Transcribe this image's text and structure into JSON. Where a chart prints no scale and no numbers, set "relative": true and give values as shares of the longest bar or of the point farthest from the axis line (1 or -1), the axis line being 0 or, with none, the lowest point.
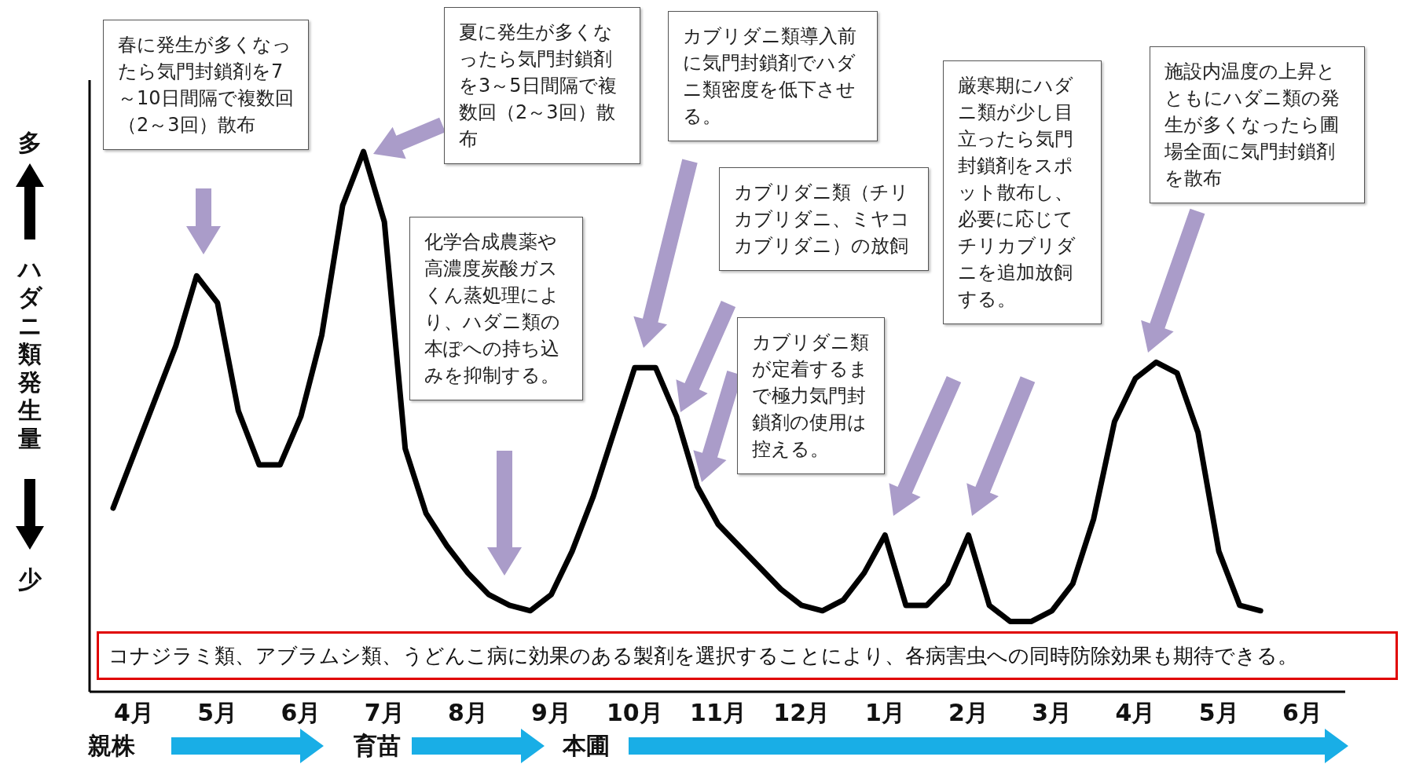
{
  "chart_data": {
    "type": "line",
    "ylabel": "ハダニ類発生量",
    "relative": true,
    "grid": false,
    "line_style": "solid",
    "marker": "none",
    "categories": [
      null,
      "4月",
      null,
      null,
      null,
      "5月",
      null,
      null,
      null,
      "6月",
      null,
      null,
      null,
      "7月",
      null,
      null,
      null,
      "8月",
      null,
      null,
      null,
      "9月",
      null,
      null,
      null,
      "10月",
      null,
      null,
      null,
      "11月",
      null,
      null,
      null,
      "12月",
      null,
      null,
      null,
      "1月",
      null,
      null,
      null,
      "2月",
      null,
      null,
      null,
      "3月",
      null,
      null,
      null,
      "4月",
      null,
      null,
      null,
      "5月",
      null,
      null,
      null,
      "6月"
    ],
    "series": [
      {
        "color": "#000000",
        "values": [
          0.34,
          0.44,
          0.54,
          0.64,
          0.77,
          0.72,
          0.52,
          0.42,
          0.42,
          0.51,
          0.66,
          0.9,
          1.0,
          0.87,
          0.45,
          0.33,
          0.27,
          0.22,
          0.18,
          0.16,
          0.15,
          0.18,
          0.26,
          0.36,
          0.48,
          0.6,
          0.6,
          0.51,
          0.38,
          0.31,
          0.27,
          0.23,
          0.19,
          0.16,
          0.15,
          0.17,
          0.22,
          0.29,
          0.16,
          0.16,
          0.2,
          0.29,
          0.16,
          0.13,
          0.13,
          0.15,
          0.2,
          0.32,
          0.5,
          0.58,
          0.61,
          0.59,
          0.48,
          0.26,
          0.16,
          0.15,
          null,
          null
        ]
      }
    ],
    "annotations": [
      "春に発生が多くなったら気門封鎖剤を7～10日間隔で複数回（2～3回）散布",
      "夏に発生が多くなったら気門封鎖剤を3～5日間隔で複数回（2～3回）散布",
      "化学合成農薬や高濃度炭酸ガスくん蒸処理により、ハダニ類の本ぽへの持ち込みを抑制する。",
      "カブリダニ類導入前に気門封鎖剤でハダニ類密度を低下させる。",
      "カブリダニ類（チリカブリダニ、ミヤコカブリダニ）の放飼",
      "カブリダニ類が定着するまで極力気門封鎖剤の使用は控える。",
      "厳寒期にハダニ類が少し目立ったら気門封鎖剤をスポット散布し、必要に応じてチリカブリダニを追加放飼する。",
      "施設内温度の上昇とともにハダニ類の発生が多くなったら圃場全面に気門封鎖剤を散布",
      "コナジラミ類、アブラムシ類、うどんこ病に効果のある製剤を選択することにより、各病害虫への同時防除効果も期待できる。",
      "親株",
      "育苗",
      "本圃",
      "多",
      "少"
    ]
  }
}
